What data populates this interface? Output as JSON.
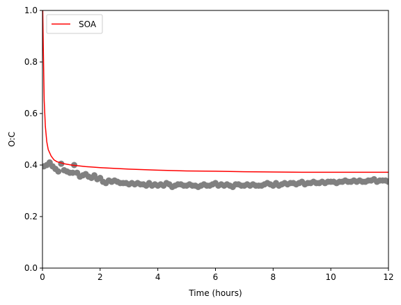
{
  "chart_data": {
    "type": "scatter",
    "xlabel": "Time (hours)",
    "ylabel": "O:C",
    "xlim": [
      0,
      12
    ],
    "ylim": [
      0,
      1
    ],
    "xticks": [
      "0",
      "2",
      "4",
      "6",
      "8",
      "10",
      "12"
    ],
    "yticks": [
      "0.0",
      "0.2",
      "0.4",
      "0.6",
      "0.8",
      "1.0"
    ],
    "grid": false,
    "legend_position": "top-left",
    "series": [
      {
        "name": "SOA",
        "kind": "line",
        "color": "#ff0000",
        "x": [
          0.01,
          0.03,
          0.06,
          0.1,
          0.15,
          0.2,
          0.3,
          0.4,
          0.5,
          0.75,
          1.0,
          1.5,
          2.0,
          3.0,
          4.0,
          5.0,
          6.0,
          7.0,
          8.0,
          9.0,
          10.0,
          11.0,
          12.0
        ],
        "y": [
          1.0,
          0.85,
          0.65,
          0.55,
          0.49,
          0.46,
          0.435,
          0.42,
          0.413,
          0.405,
          0.4,
          0.394,
          0.39,
          0.384,
          0.38,
          0.377,
          0.376,
          0.374,
          0.373,
          0.372,
          0.372,
          0.372,
          0.372
        ]
      },
      {
        "name": "",
        "kind": "scatter",
        "color": "#808080",
        "x": [
          0.05,
          0.15,
          0.25,
          0.35,
          0.45,
          0.55,
          0.65,
          0.75,
          0.85,
          0.95,
          1.05,
          1.1,
          1.2,
          1.3,
          1.4,
          1.5,
          1.6,
          1.7,
          1.8,
          1.9,
          2.0,
          2.1,
          2.2,
          2.3,
          2.4,
          2.5,
          2.6,
          2.7,
          2.8,
          2.9,
          3.0,
          3.1,
          3.2,
          3.3,
          3.4,
          3.5,
          3.6,
          3.7,
          3.8,
          3.9,
          4.0,
          4.1,
          4.2,
          4.3,
          4.4,
          4.5,
          4.6,
          4.7,
          4.8,
          4.9,
          5.0,
          5.1,
          5.2,
          5.3,
          5.4,
          5.5,
          5.6,
          5.7,
          5.8,
          5.9,
          6.0,
          6.1,
          6.2,
          6.3,
          6.4,
          6.5,
          6.6,
          6.7,
          6.8,
          6.9,
          7.0,
          7.1,
          7.2,
          7.3,
          7.4,
          7.5,
          7.6,
          7.7,
          7.8,
          7.9,
          8.0,
          8.1,
          8.2,
          8.3,
          8.4,
          8.5,
          8.6,
          8.7,
          8.8,
          8.9,
          9.0,
          9.1,
          9.2,
          9.3,
          9.4,
          9.5,
          9.6,
          9.7,
          9.8,
          9.9,
          10.0,
          10.1,
          10.2,
          10.3,
          10.4,
          10.5,
          10.6,
          10.7,
          10.8,
          10.9,
          11.0,
          11.1,
          11.2,
          11.3,
          11.4,
          11.5,
          11.6,
          11.7,
          11.8,
          11.9,
          12.0
        ],
        "y": [
          0.395,
          0.4,
          0.41,
          0.395,
          0.385,
          0.375,
          0.405,
          0.38,
          0.375,
          0.37,
          0.37,
          0.4,
          0.37,
          0.355,
          0.36,
          0.365,
          0.355,
          0.35,
          0.36,
          0.345,
          0.35,
          0.335,
          0.33,
          0.34,
          0.335,
          0.34,
          0.335,
          0.33,
          0.33,
          0.33,
          0.325,
          0.33,
          0.325,
          0.33,
          0.325,
          0.325,
          0.32,
          0.33,
          0.32,
          0.325,
          0.32,
          0.325,
          0.32,
          0.33,
          0.325,
          0.315,
          0.32,
          0.325,
          0.325,
          0.32,
          0.32,
          0.325,
          0.32,
          0.32,
          0.315,
          0.32,
          0.325,
          0.32,
          0.32,
          0.325,
          0.33,
          0.32,
          0.325,
          0.32,
          0.325,
          0.32,
          0.315,
          0.325,
          0.325,
          0.32,
          0.32,
          0.325,
          0.32,
          0.325,
          0.32,
          0.32,
          0.32,
          0.325,
          0.33,
          0.325,
          0.32,
          0.33,
          0.32,
          0.325,
          0.33,
          0.325,
          0.33,
          0.33,
          0.325,
          0.33,
          0.335,
          0.325,
          0.33,
          0.33,
          0.335,
          0.33,
          0.33,
          0.335,
          0.33,
          0.335,
          0.335,
          0.335,
          0.33,
          0.335,
          0.335,
          0.34,
          0.335,
          0.335,
          0.34,
          0.335,
          0.34,
          0.335,
          0.335,
          0.34,
          0.34,
          0.345,
          0.335,
          0.34,
          0.34,
          0.34,
          0.335
        ]
      }
    ]
  }
}
